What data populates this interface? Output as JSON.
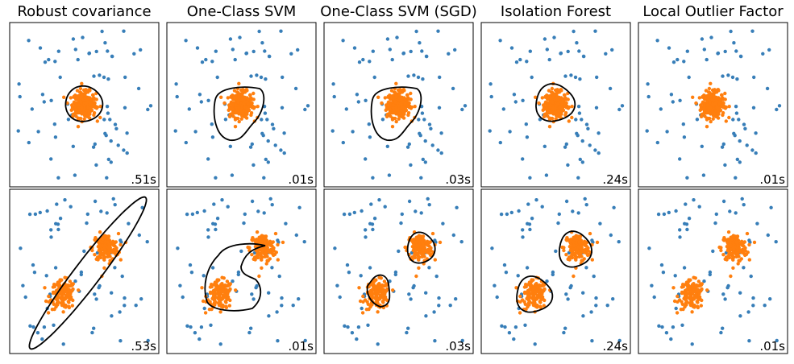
{
  "figure": {
    "background": "#ffffff",
    "inlier_color": "#ff7f0e",
    "outlier_color": "#377eb8",
    "contour_color": "#000000"
  },
  "chart_data": [
    {
      "type": "scatter",
      "title": "Robust covariance",
      "row": 0,
      "col": 0,
      "time": ".51s",
      "xlim": [
        -7,
        7
      ],
      "ylim": [
        -7,
        7
      ],
      "grid": false,
      "cluster_centers": [
        [
          0,
          0
        ]
      ],
      "contour": "ellipse-small"
    },
    {
      "type": "scatter",
      "title": "One-Class SVM",
      "row": 0,
      "col": 1,
      "time": ".01s",
      "xlim": [
        -7,
        7
      ],
      "ylim": [
        -7,
        7
      ],
      "grid": false,
      "cluster_centers": [
        [
          0,
          0
        ]
      ],
      "contour": "blob-wide"
    },
    {
      "type": "scatter",
      "title": "One-Class SVM (SGD)",
      "row": 0,
      "col": 2,
      "time": ".03s",
      "xlim": [
        -7,
        7
      ],
      "ylim": [
        -7,
        7
      ],
      "grid": false,
      "cluster_centers": [
        [
          0,
          0
        ]
      ],
      "contour": "blob-wide"
    },
    {
      "type": "scatter",
      "title": "Isolation Forest",
      "row": 0,
      "col": 3,
      "time": ".24s",
      "xlim": [
        -7,
        7
      ],
      "ylim": [
        -7,
        7
      ],
      "grid": false,
      "cluster_centers": [
        [
          0,
          0
        ]
      ],
      "contour": "blob-tight"
    },
    {
      "type": "scatter",
      "title": "Local Outlier Factor",
      "row": 0,
      "col": 4,
      "time": ".01s",
      "xlim": [
        -7,
        7
      ],
      "ylim": [
        -7,
        7
      ],
      "grid": false,
      "cluster_centers": [
        [
          0,
          0
        ]
      ],
      "contour": "none"
    },
    {
      "type": "scatter",
      "title": "",
      "row": 1,
      "col": 0,
      "time": ".53s",
      "xlim": [
        -7,
        7
      ],
      "ylim": [
        -7,
        7
      ],
      "grid": false,
      "cluster_centers": [
        [
          -2,
          -2
        ],
        [
          2,
          2
        ]
      ],
      "contour": "long-ellipse"
    },
    {
      "type": "scatter",
      "title": "",
      "row": 1,
      "col": 1,
      "time": ".01s",
      "xlim": [
        -7,
        7
      ],
      "ylim": [
        -7,
        7
      ],
      "grid": false,
      "cluster_centers": [
        [
          -2,
          -2
        ],
        [
          2,
          2
        ]
      ],
      "contour": "c-shape"
    },
    {
      "type": "scatter",
      "title": "",
      "row": 1,
      "col": 2,
      "time": ".03s",
      "xlim": [
        -7,
        7
      ],
      "ylim": [
        -7,
        7
      ],
      "grid": false,
      "cluster_centers": [
        [
          -2,
          -2
        ],
        [
          2,
          2
        ]
      ],
      "contour": "two-blobs-sgd"
    },
    {
      "type": "scatter",
      "title": "",
      "row": 1,
      "col": 3,
      "time": ".24s",
      "xlim": [
        -7,
        7
      ],
      "ylim": [
        -7,
        7
      ],
      "grid": false,
      "cluster_centers": [
        [
          -2,
          -2
        ],
        [
          2,
          2
        ]
      ],
      "contour": "two-blobs"
    },
    {
      "type": "scatter",
      "title": "",
      "row": 1,
      "col": 4,
      "time": ".01s",
      "xlim": [
        -7,
        7
      ],
      "ylim": [
        -7,
        7
      ],
      "grid": false,
      "cluster_centers": [
        [
          -2,
          -2
        ],
        [
          2,
          2
        ]
      ],
      "contour": "none"
    }
  ]
}
